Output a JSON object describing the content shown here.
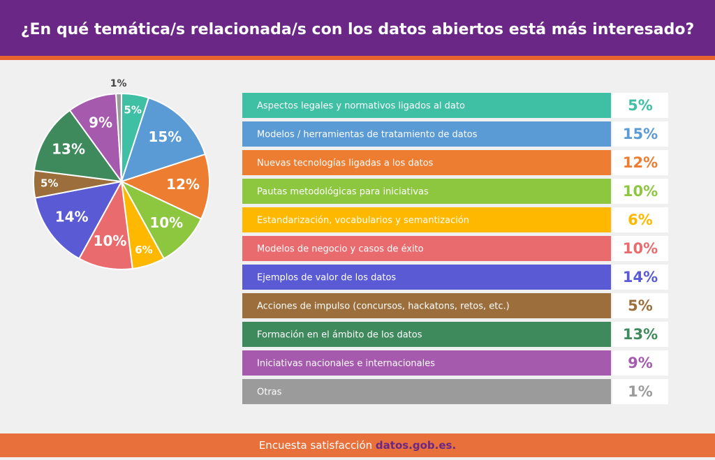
{
  "chart_data": {
    "type": "pie",
    "title": "¿En qué temática/s relacionada/s con los datos abiertos está más interesado?",
    "categories": [
      "Aspectos legales y normativos ligados al dato",
      "Modelos / herramientas de tratamiento de datos",
      "Nuevas tecnologías ligadas a los datos",
      "Pautas metodológicas para iniciativas",
      "Estandarización,  vocabularios y semantización",
      "Modelos de negocio y casos de éxito",
      "Ejemplos de valor de los datos",
      "Acciones de impulso (concursos, hackatons, retos, etc.)",
      "Formación en el ámbito de los datos",
      "Iniciativas nacionales e internacionales",
      "Otras"
    ],
    "values": [
      5,
      15,
      12,
      10,
      6,
      10,
      14,
      5,
      13,
      9,
      1
    ],
    "value_labels": [
      "5%",
      "15%",
      "12%",
      "10%",
      "6%",
      "10%",
      "14%",
      "5%",
      "13%",
      "9%",
      "1%"
    ],
    "colors": [
      "#3fbfa3",
      "#5b9bd5",
      "#ed7d31",
      "#8dc63f",
      "#ffb800",
      "#e96b6e",
      "#5a5bd4",
      "#9c6e3c",
      "#3f8a5c",
      "#a65aae",
      "#9b9b9b"
    ],
    "source_text": "Encuesta satisfacción",
    "source_link": "datos.gob.es."
  }
}
